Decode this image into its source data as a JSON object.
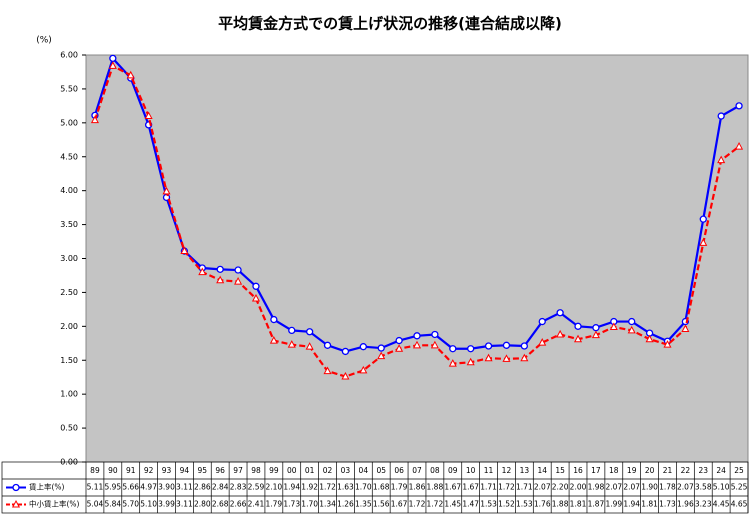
{
  "chart_data": {
    "type": "line",
    "title": "平均賃金方式での賃上げ状況の推移(連合結成以降)",
    "y_label": "(%)",
    "categories": [
      "89",
      "90",
      "91",
      "92",
      "93",
      "94",
      "95",
      "96",
      "97",
      "98",
      "99",
      "00",
      "01",
      "02",
      "03",
      "04",
      "05",
      "06",
      "07",
      "08",
      "09",
      "10",
      "11",
      "12",
      "13",
      "14",
      "15",
      "16",
      "17",
      "18",
      "19",
      "20",
      "21",
      "22",
      "23",
      "24",
      "25"
    ],
    "series": [
      {
        "name": "賃上率(%)",
        "color": "#0000ff",
        "dashed": false,
        "marker": "circle",
        "values": [
          5.11,
          5.95,
          5.66,
          4.97,
          3.9,
          3.11,
          2.86,
          2.84,
          2.83,
          2.59,
          2.1,
          1.94,
          1.92,
          1.72,
          1.63,
          1.7,
          1.68,
          1.79,
          1.86,
          1.88,
          1.67,
          1.67,
          1.71,
          1.72,
          1.71,
          2.07,
          2.2,
          2.0,
          1.98,
          2.07,
          2.07,
          1.9,
          1.78,
          2.07,
          3.58,
          5.1,
          5.25
        ],
        "value_labels": [
          "5.11",
          "5.95",
          "5.66",
          "4.97",
          "3.90",
          "3.11",
          "2.86",
          "2.84",
          "2.83",
          "2.59",
          "2.10",
          "1.94",
          "1.92",
          "1.72",
          "1.63",
          "1.70",
          "1.68",
          "1.79",
          "1.86",
          "1.88",
          "1.67",
          "1.67",
          "1.71",
          "1.72",
          "1.71",
          "2.07",
          "2.20",
          "2.00",
          "1.98",
          "2.07",
          "2.07",
          "1.90",
          "1.78",
          "2.07",
          "3.58",
          "5.10",
          "5.25"
        ]
      },
      {
        "name": "中小賃上率(%)",
        "color": "#ff0000",
        "dashed": true,
        "marker": "triangle",
        "values": [
          5.04,
          5.84,
          5.7,
          5.1,
          3.99,
          3.11,
          2.8,
          2.68,
          2.66,
          2.41,
          1.79,
          1.73,
          1.7,
          1.34,
          1.26,
          1.35,
          1.56,
          1.67,
          1.72,
          1.72,
          1.45,
          1.47,
          1.53,
          1.52,
          1.53,
          1.76,
          1.88,
          1.81,
          1.87,
          1.99,
          1.94,
          1.81,
          1.73,
          1.96,
          3.23,
          4.45,
          4.65
        ],
        "value_labels": [
          "5.04",
          "5.84",
          "5.70",
          "5.10",
          "3.99",
          "3.11",
          "2.80",
          "2.68",
          "2.66",
          "2.41",
          "1.79",
          "1.73",
          "1.70",
          "1.34",
          "1.26",
          "1.35",
          "1.56",
          "1.67",
          "1.72",
          "1.72",
          "1.45",
          "1.47",
          "1.53",
          "1.52",
          "1.53",
          "1.76",
          "1.88",
          "1.81",
          "1.87",
          "1.99",
          "1.94",
          "1.81",
          "1.73",
          "1.96",
          "3.23",
          "4.45",
          "4.65"
        ]
      }
    ],
    "ylim": [
      0,
      6
    ],
    "yticks": [
      {
        "value": 0,
        "label": "0.00"
      },
      {
        "value": 0.5,
        "label": "0.50"
      },
      {
        "value": 1,
        "label": "1.00"
      },
      {
        "value": 1.5,
        "label": "1.50"
      },
      {
        "value": 2,
        "label": "2.00"
      },
      {
        "value": 2.5,
        "label": "2.50"
      },
      {
        "value": 3,
        "label": "3.00"
      },
      {
        "value": 3.5,
        "label": "3.50"
      },
      {
        "value": 4,
        "label": "4.00"
      },
      {
        "value": 4.5,
        "label": "4.50"
      },
      {
        "value": 5,
        "label": "5.00"
      },
      {
        "value": 5.5,
        "label": "5.50"
      },
      {
        "value": 6,
        "label": "6.00"
      }
    ],
    "grid": false,
    "plot_background": "#c4c4c4"
  }
}
